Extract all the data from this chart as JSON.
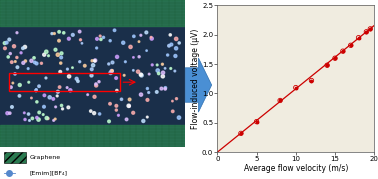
{
  "x_data": [
    3,
    5,
    8,
    10,
    12,
    14,
    15,
    16,
    17,
    18,
    19,
    19.5
  ],
  "y_data": [
    0.32,
    0.52,
    0.88,
    1.1,
    1.22,
    1.48,
    1.6,
    1.72,
    1.82,
    1.95,
    2.05,
    2.1
  ],
  "line_color": "#cc0000",
  "dot_color": "#cc0000",
  "xlabel": "Average flow velocity (m/s)",
  "ylabel": "Flow-induced voltage (μV)",
  "xlim": [
    0,
    20
  ],
  "ylim": [
    0.0,
    2.5
  ],
  "xticks": [
    0,
    5,
    10,
    15,
    20
  ],
  "yticks": [
    0.0,
    0.5,
    1.0,
    1.5,
    2.0,
    2.5
  ],
  "bg_color": "#f0ece0",
  "plot_bg": "#f0ece0",
  "xlabel_fontsize": 5.5,
  "ylabel_fontsize": 5.5,
  "tick_fontsize": 5.0,
  "arrow_color": "#4a90d9",
  "sim_bg": "#1a3a5c",
  "graphene_color": "#2d8a4e",
  "legend_graphene": "Graphene",
  "legend_il": "[Emim][BF₄]",
  "fig_width": 3.78,
  "fig_height": 1.79
}
